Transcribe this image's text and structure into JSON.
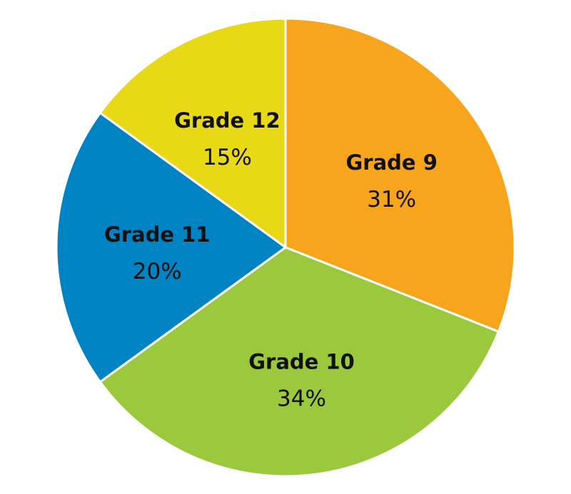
{
  "chart_data": {
    "type": "pie",
    "title": "",
    "legend": "none",
    "slices": [
      {
        "label": "Grade 9",
        "value": 31,
        "value_label": "31%",
        "color": "#F7A51D"
      },
      {
        "label": "Grade 10",
        "value": 34,
        "value_label": "34%",
        "color": "#9BC83C"
      },
      {
        "label": "Grade 11",
        "value": 20,
        "value_label": "20%",
        "color": "#0083C2"
      },
      {
        "label": "Grade 12",
        "value": 15,
        "value_label": "15%",
        "color": "#E8D916"
      }
    ]
  }
}
